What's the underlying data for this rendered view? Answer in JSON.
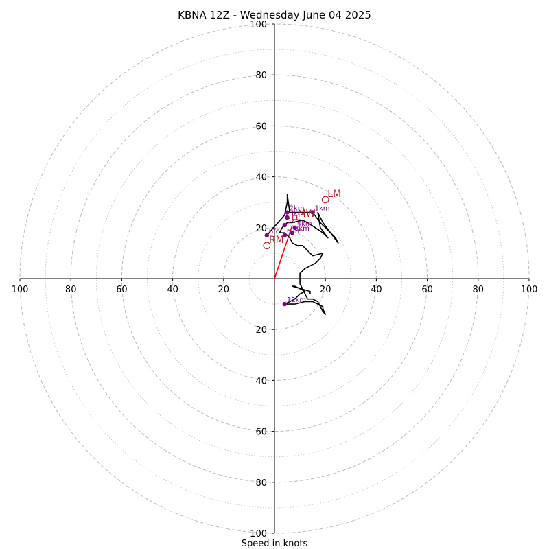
{
  "chart_data": {
    "type": "hodograph",
    "title": "KBNA 12Z - Wednesday June 04 2025",
    "xlabel": "Speed in knots",
    "range": [
      -100,
      100
    ],
    "rings_major": [
      20,
      40,
      60,
      80,
      100
    ],
    "rings_minor": [
      10,
      30,
      50,
      70,
      90
    ],
    "tick_labels": {
      "x": [
        {
          "value": -100,
          "label": "100"
        },
        {
          "value": -80,
          "label": "80"
        },
        {
          "value": -60,
          "label": "60"
        },
        {
          "value": -40,
          "label": "40"
        },
        {
          "value": -20,
          "label": "20"
        },
        {
          "value": 20,
          "label": "20"
        },
        {
          "value": 40,
          "label": "40"
        },
        {
          "value": 60,
          "label": "60"
        },
        {
          "value": 80,
          "label": "80"
        },
        {
          "value": 100,
          "label": "100"
        }
      ],
      "y": [
        {
          "value": 100,
          "label": "100"
        },
        {
          "value": 80,
          "label": "80"
        },
        {
          "value": 60,
          "label": "60"
        },
        {
          "value": 40,
          "label": "40"
        },
        {
          "value": 20,
          "label": "20"
        },
        {
          "value": -20,
          "label": "20"
        },
        {
          "value": -40,
          "label": "40"
        },
        {
          "value": -60,
          "label": "60"
        },
        {
          "value": -80,
          "label": "80"
        },
        {
          "value": -100,
          "label": "100"
        }
      ]
    },
    "hodograph_trace": [
      [
        -3,
        17
      ],
      [
        4,
        25
      ],
      [
        5,
        30
      ],
      [
        5,
        33
      ],
      [
        6,
        26
      ],
      [
        10,
        26
      ],
      [
        12,
        26
      ],
      [
        15,
        26
      ],
      [
        18,
        22
      ],
      [
        20,
        20
      ],
      [
        22,
        18
      ],
      [
        24,
        16
      ],
      [
        25,
        14
      ],
      [
        19,
        22
      ],
      [
        17,
        26
      ],
      [
        18,
        20
      ],
      [
        21,
        16
      ],
      [
        19,
        18
      ],
      [
        16,
        20
      ],
      [
        13,
        22
      ],
      [
        11,
        23
      ],
      [
        7,
        22
      ],
      [
        5,
        22
      ],
      [
        3,
        20
      ],
      [
        2,
        18
      ],
      [
        4,
        18
      ],
      [
        6,
        16
      ],
      [
        7,
        14
      ],
      [
        9,
        13
      ],
      [
        11,
        13
      ],
      [
        12,
        12
      ],
      [
        14,
        10
      ],
      [
        15,
        9
      ],
      [
        19,
        10
      ],
      [
        18,
        8
      ],
      [
        16,
        6
      ],
      [
        12,
        4
      ],
      [
        10,
        2
      ],
      [
        10,
        -2
      ],
      [
        11,
        -4
      ],
      [
        12,
        -6
      ],
      [
        13,
        -8
      ],
      [
        15,
        -8
      ],
      [
        17,
        -9
      ],
      [
        18,
        -11
      ],
      [
        19,
        -13
      ],
      [
        20,
        -14
      ],
      [
        19,
        -12
      ],
      [
        19,
        -11
      ],
      [
        15,
        -9
      ],
      [
        12,
        -9
      ],
      [
        8,
        -10
      ],
      [
        4,
        -10
      ],
      [
        6,
        -9
      ],
      [
        8,
        -8
      ],
      [
        10,
        -6
      ],
      [
        12,
        -5
      ],
      [
        10,
        -4
      ],
      [
        8,
        -3
      ],
      [
        7,
        -3
      ],
      [
        14,
        -5
      ],
      [
        14,
        -6
      ]
    ],
    "height_markers": [
      {
        "label": "Sfc",
        "x": -3,
        "y": 17
      },
      {
        "label": "1km",
        "x": 15,
        "y": 26
      },
      {
        "label": "2km",
        "x": 5,
        "y": 26
      },
      {
        "label": "3km",
        "x": 5,
        "y": 24
      },
      {
        "label": "4km",
        "x": 8,
        "y": 20
      },
      {
        "label": "5km",
        "x": 4,
        "y": 21
      },
      {
        "label": "6km",
        "x": 4,
        "y": 17
      },
      {
        "label": "8km",
        "x": 7,
        "y": 18
      },
      {
        "label": "12km",
        "x": 4,
        "y": -10
      }
    ],
    "storm_motion": [
      {
        "label": "LM",
        "x": 20,
        "y": 31
      },
      {
        "label": "RM",
        "x": -3,
        "y": 13
      }
    ],
    "bunkers_mw": {
      "label": "MW",
      "x": 8,
      "y": 24
    },
    "shear_vector": {
      "from": [
        0,
        0
      ],
      "to": [
        7,
        21
      ]
    },
    "colors": {
      "trace": "#000000",
      "markers": "#800080",
      "storm_motion": "#b22222",
      "shear": "#ff0000",
      "rings": "#bbbbbb"
    }
  }
}
